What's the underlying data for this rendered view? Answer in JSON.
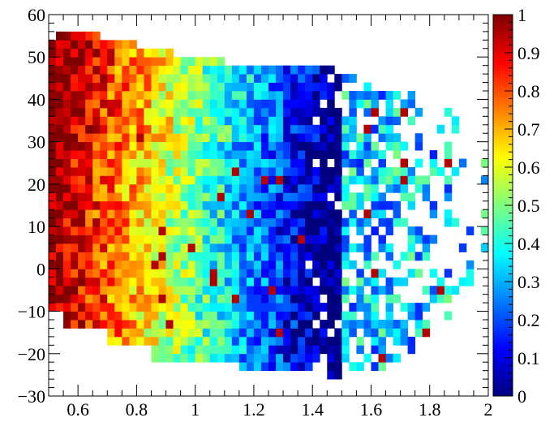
{
  "chart_data": {
    "type": "heatmap",
    "title": "",
    "xlabel": "",
    "ylabel": "",
    "xlim": [
      0.5,
      2.0
    ],
    "ylim": [
      -30,
      60
    ],
    "x_ticks": [
      "0.6",
      "0.8",
      "1",
      "1.2",
      "1.4",
      "1.6",
      "1.8",
      "2"
    ],
    "x_tick_values": [
      0.6,
      0.8,
      1.0,
      1.2,
      1.4,
      1.6,
      1.8,
      2.0
    ],
    "y_ticks": [
      "−30",
      "−20",
      "−10",
      "0",
      "10",
      "20",
      "30",
      "40",
      "50",
      "60"
    ],
    "y_tick_values": [
      -30,
      -20,
      -10,
      0,
      10,
      20,
      30,
      40,
      50,
      60
    ],
    "colorbar": {
      "range": [
        0,
        1
      ],
      "ticks": [
        "0",
        "0.1",
        "0.2",
        "0.3",
        "0.4",
        "0.5",
        "0.6",
        "0.7",
        "0.8",
        "0.9",
        "1"
      ],
      "tick_values": [
        0,
        0.1,
        0.2,
        0.3,
        0.4,
        0.5,
        0.6,
        0.7,
        0.8,
        0.9,
        1.0
      ],
      "palette": [
        "#00007f",
        "#0000ff",
        "#007fff",
        "#00ffff",
        "#7fff7f",
        "#ffff00",
        "#ff7f00",
        "#ff0000",
        "#7f0000"
      ]
    },
    "bins": {
      "x_width": 0.025,
      "y_height": 2.0
    },
    "grid": false,
    "legend": "colorbar-right"
  }
}
